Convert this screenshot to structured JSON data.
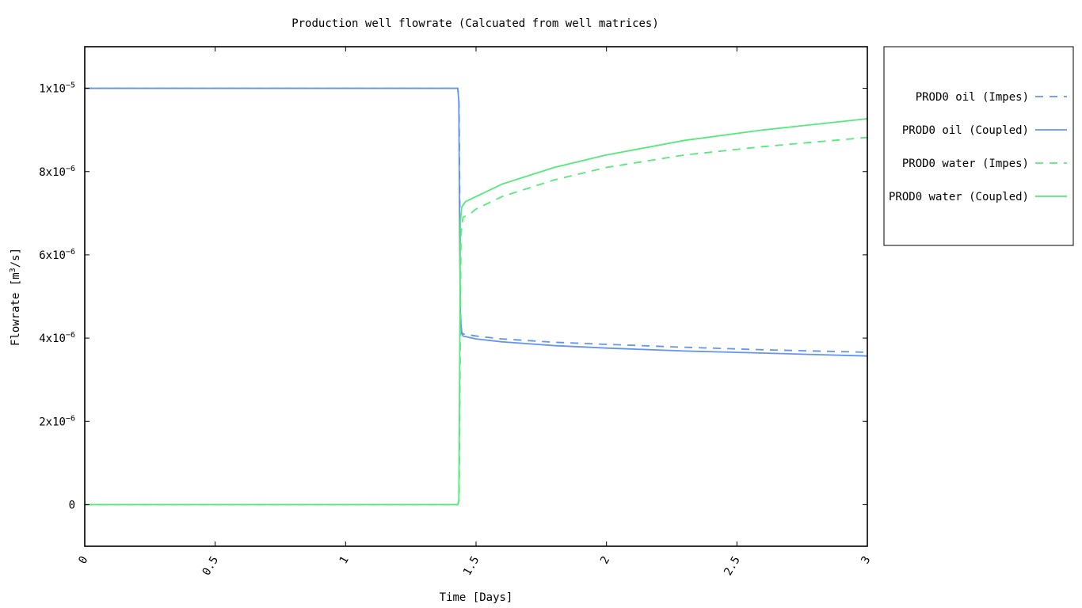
{
  "chart_data": {
    "type": "line",
    "title": "Production well flowrate (Calcuated from well matrices)",
    "xlabel": "Time [Days]",
    "ylabel": "Flowrate [m3/s]",
    "xlim": [
      0,
      3
    ],
    "ylim": [
      -1e-06,
      1.1e-05
    ],
    "x_ticks": [
      {
        "value": 0,
        "label": "0"
      },
      {
        "value": 0.5,
        "label": "0.5"
      },
      {
        "value": 1,
        "label": "1"
      },
      {
        "value": 1.5,
        "label": "1.5"
      },
      {
        "value": 2,
        "label": "2"
      },
      {
        "value": 2.5,
        "label": "2.5"
      },
      {
        "value": 3,
        "label": "3"
      }
    ],
    "y_ticks": [
      {
        "value": 0,
        "mant": "0",
        "exp": ""
      },
      {
        "value": 2e-06,
        "mant": "2x10",
        "exp": "−6"
      },
      {
        "value": 4e-06,
        "mant": "4x10",
        "exp": "−6"
      },
      {
        "value": 6e-06,
        "mant": "6x10",
        "exp": "−6"
      },
      {
        "value": 8e-06,
        "mant": "8x10",
        "exp": "−6"
      },
      {
        "value": 1e-05,
        "mant": "1x10",
        "exp": "−5"
      }
    ],
    "legend_position": "outside-right",
    "grid": false,
    "series": [
      {
        "name": "PROD0 oil (Impes)",
        "color": "#6495ed",
        "dash": true,
        "x": [
          0,
          1.43,
          1.435,
          1.438,
          1.44,
          1.445,
          1.45,
          1.5,
          1.6,
          1.8,
          2.0,
          2.3,
          2.6,
          3.0
        ],
        "y": [
          1e-05,
          1e-05,
          9.6e-06,
          7e-06,
          4.6e-06,
          4.15e-06,
          4.1e-06,
          4.05e-06,
          3.98e-06,
          3.9e-06,
          3.85e-06,
          3.78e-06,
          3.72e-06,
          3.66e-06
        ]
      },
      {
        "name": "PROD0 oil (Coupled)",
        "color": "#6495ed",
        "dash": false,
        "x": [
          0,
          1.43,
          1.434,
          1.437,
          1.44,
          1.445,
          1.45,
          1.5,
          1.6,
          1.8,
          2.0,
          2.3,
          2.6,
          3.0
        ],
        "y": [
          1e-05,
          1e-05,
          9.7e-06,
          6.5e-06,
          4.5e-06,
          4.1e-06,
          4.05e-06,
          3.98e-06,
          3.91e-06,
          3.82e-06,
          3.76e-06,
          3.69e-06,
          3.64e-06,
          3.57e-06
        ]
      },
      {
        "name": "PROD0 water (Impes)",
        "color": "#55e97d",
        "dash": true,
        "x": [
          0,
          1.43,
          1.435,
          1.438,
          1.442,
          1.45,
          1.48,
          1.5,
          1.6,
          1.8,
          2.0,
          2.3,
          2.6,
          3.0
        ],
        "y": [
          0,
          0,
          1e-07,
          2.5e-06,
          6.5e-06,
          6.9e-06,
          7e-06,
          7.1e-06,
          7.4e-06,
          7.8e-06,
          8.1e-06,
          8.4e-06,
          8.6e-06,
          8.82e-06
        ]
      },
      {
        "name": "PROD0 water (Coupled)",
        "color": "#55e97d",
        "dash": false,
        "x": [
          0,
          1.43,
          1.434,
          1.437,
          1.44,
          1.445,
          1.46,
          1.5,
          1.6,
          1.8,
          2.0,
          2.3,
          2.6,
          3.0
        ],
        "y": [
          0,
          0,
          1e-07,
          3e-06,
          6.8e-06,
          7.15e-06,
          7.28e-06,
          7.4e-06,
          7.7e-06,
          8.1e-06,
          8.4e-06,
          8.75e-06,
          9e-06,
          9.27e-06
        ]
      }
    ]
  }
}
